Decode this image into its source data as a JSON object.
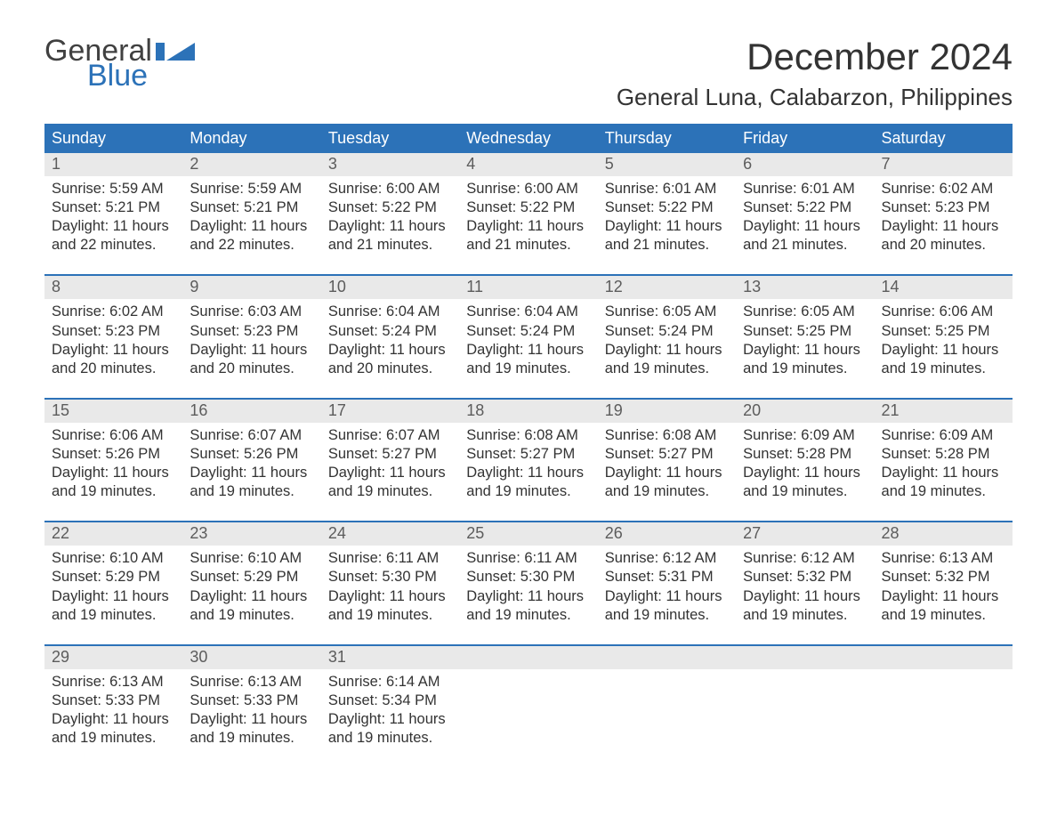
{
  "logo": {
    "line1": "General",
    "line2": "Blue"
  },
  "title": {
    "month_year": "December 2024",
    "location": "General Luna, Calabarzon, Philippines"
  },
  "colors": {
    "header_bg": "#2c72b8",
    "header_text": "#ffffff",
    "daynum_bg": "#e9e9e9",
    "daynum_text": "#5c5c5c",
    "body_text": "#333333",
    "week_border": "#2c72b8",
    "logo_blue": "#2c72b8",
    "logo_gray": "#404040",
    "background": "#ffffff"
  },
  "typography": {
    "month_fontsize": 42,
    "location_fontsize": 26,
    "dayheader_fontsize": 18,
    "daynum_fontsize": 18,
    "cell_fontsize": 16.5,
    "logo_fontsize": 34
  },
  "day_names": [
    "Sunday",
    "Monday",
    "Tuesday",
    "Wednesday",
    "Thursday",
    "Friday",
    "Saturday"
  ],
  "weeks": [
    {
      "days": [
        {
          "num": "1",
          "sunrise": "Sunrise: 5:59 AM",
          "sunset": "Sunset: 5:21 PM",
          "dl1": "Daylight: 11 hours",
          "dl2": "and 22 minutes."
        },
        {
          "num": "2",
          "sunrise": "Sunrise: 5:59 AM",
          "sunset": "Sunset: 5:21 PM",
          "dl1": "Daylight: 11 hours",
          "dl2": "and 22 minutes."
        },
        {
          "num": "3",
          "sunrise": "Sunrise: 6:00 AM",
          "sunset": "Sunset: 5:22 PM",
          "dl1": "Daylight: 11 hours",
          "dl2": "and 21 minutes."
        },
        {
          "num": "4",
          "sunrise": "Sunrise: 6:00 AM",
          "sunset": "Sunset: 5:22 PM",
          "dl1": "Daylight: 11 hours",
          "dl2": "and 21 minutes."
        },
        {
          "num": "5",
          "sunrise": "Sunrise: 6:01 AM",
          "sunset": "Sunset: 5:22 PM",
          "dl1": "Daylight: 11 hours",
          "dl2": "and 21 minutes."
        },
        {
          "num": "6",
          "sunrise": "Sunrise: 6:01 AM",
          "sunset": "Sunset: 5:22 PM",
          "dl1": "Daylight: 11 hours",
          "dl2": "and 21 minutes."
        },
        {
          "num": "7",
          "sunrise": "Sunrise: 6:02 AM",
          "sunset": "Sunset: 5:23 PM",
          "dl1": "Daylight: 11 hours",
          "dl2": "and 20 minutes."
        }
      ]
    },
    {
      "days": [
        {
          "num": "8",
          "sunrise": "Sunrise: 6:02 AM",
          "sunset": "Sunset: 5:23 PM",
          "dl1": "Daylight: 11 hours",
          "dl2": "and 20 minutes."
        },
        {
          "num": "9",
          "sunrise": "Sunrise: 6:03 AM",
          "sunset": "Sunset: 5:23 PM",
          "dl1": "Daylight: 11 hours",
          "dl2": "and 20 minutes."
        },
        {
          "num": "10",
          "sunrise": "Sunrise: 6:04 AM",
          "sunset": "Sunset: 5:24 PM",
          "dl1": "Daylight: 11 hours",
          "dl2": "and 20 minutes."
        },
        {
          "num": "11",
          "sunrise": "Sunrise: 6:04 AM",
          "sunset": "Sunset: 5:24 PM",
          "dl1": "Daylight: 11 hours",
          "dl2": "and 19 minutes."
        },
        {
          "num": "12",
          "sunrise": "Sunrise: 6:05 AM",
          "sunset": "Sunset: 5:24 PM",
          "dl1": "Daylight: 11 hours",
          "dl2": "and 19 minutes."
        },
        {
          "num": "13",
          "sunrise": "Sunrise: 6:05 AM",
          "sunset": "Sunset: 5:25 PM",
          "dl1": "Daylight: 11 hours",
          "dl2": "and 19 minutes."
        },
        {
          "num": "14",
          "sunrise": "Sunrise: 6:06 AM",
          "sunset": "Sunset: 5:25 PM",
          "dl1": "Daylight: 11 hours",
          "dl2": "and 19 minutes."
        }
      ]
    },
    {
      "days": [
        {
          "num": "15",
          "sunrise": "Sunrise: 6:06 AM",
          "sunset": "Sunset: 5:26 PM",
          "dl1": "Daylight: 11 hours",
          "dl2": "and 19 minutes."
        },
        {
          "num": "16",
          "sunrise": "Sunrise: 6:07 AM",
          "sunset": "Sunset: 5:26 PM",
          "dl1": "Daylight: 11 hours",
          "dl2": "and 19 minutes."
        },
        {
          "num": "17",
          "sunrise": "Sunrise: 6:07 AM",
          "sunset": "Sunset: 5:27 PM",
          "dl1": "Daylight: 11 hours",
          "dl2": "and 19 minutes."
        },
        {
          "num": "18",
          "sunrise": "Sunrise: 6:08 AM",
          "sunset": "Sunset: 5:27 PM",
          "dl1": "Daylight: 11 hours",
          "dl2": "and 19 minutes."
        },
        {
          "num": "19",
          "sunrise": "Sunrise: 6:08 AM",
          "sunset": "Sunset: 5:27 PM",
          "dl1": "Daylight: 11 hours",
          "dl2": "and 19 minutes."
        },
        {
          "num": "20",
          "sunrise": "Sunrise: 6:09 AM",
          "sunset": "Sunset: 5:28 PM",
          "dl1": "Daylight: 11 hours",
          "dl2": "and 19 minutes."
        },
        {
          "num": "21",
          "sunrise": "Sunrise: 6:09 AM",
          "sunset": "Sunset: 5:28 PM",
          "dl1": "Daylight: 11 hours",
          "dl2": "and 19 minutes."
        }
      ]
    },
    {
      "days": [
        {
          "num": "22",
          "sunrise": "Sunrise: 6:10 AM",
          "sunset": "Sunset: 5:29 PM",
          "dl1": "Daylight: 11 hours",
          "dl2": "and 19 minutes."
        },
        {
          "num": "23",
          "sunrise": "Sunrise: 6:10 AM",
          "sunset": "Sunset: 5:29 PM",
          "dl1": "Daylight: 11 hours",
          "dl2": "and 19 minutes."
        },
        {
          "num": "24",
          "sunrise": "Sunrise: 6:11 AM",
          "sunset": "Sunset: 5:30 PM",
          "dl1": "Daylight: 11 hours",
          "dl2": "and 19 minutes."
        },
        {
          "num": "25",
          "sunrise": "Sunrise: 6:11 AM",
          "sunset": "Sunset: 5:30 PM",
          "dl1": "Daylight: 11 hours",
          "dl2": "and 19 minutes."
        },
        {
          "num": "26",
          "sunrise": "Sunrise: 6:12 AM",
          "sunset": "Sunset: 5:31 PM",
          "dl1": "Daylight: 11 hours",
          "dl2": "and 19 minutes."
        },
        {
          "num": "27",
          "sunrise": "Sunrise: 6:12 AM",
          "sunset": "Sunset: 5:32 PM",
          "dl1": "Daylight: 11 hours",
          "dl2": "and 19 minutes."
        },
        {
          "num": "28",
          "sunrise": "Sunrise: 6:13 AM",
          "sunset": "Sunset: 5:32 PM",
          "dl1": "Daylight: 11 hours",
          "dl2": "and 19 minutes."
        }
      ]
    },
    {
      "days": [
        {
          "num": "29",
          "sunrise": "Sunrise: 6:13 AM",
          "sunset": "Sunset: 5:33 PM",
          "dl1": "Daylight: 11 hours",
          "dl2": "and 19 minutes."
        },
        {
          "num": "30",
          "sunrise": "Sunrise: 6:13 AM",
          "sunset": "Sunset: 5:33 PM",
          "dl1": "Daylight: 11 hours",
          "dl2": "and 19 minutes."
        },
        {
          "num": "31",
          "sunrise": "Sunrise: 6:14 AM",
          "sunset": "Sunset: 5:34 PM",
          "dl1": "Daylight: 11 hours",
          "dl2": "and 19 minutes."
        },
        {
          "num": "",
          "sunrise": "",
          "sunset": "",
          "dl1": "",
          "dl2": ""
        },
        {
          "num": "",
          "sunrise": "",
          "sunset": "",
          "dl1": "",
          "dl2": ""
        },
        {
          "num": "",
          "sunrise": "",
          "sunset": "",
          "dl1": "",
          "dl2": ""
        },
        {
          "num": "",
          "sunrise": "",
          "sunset": "",
          "dl1": "",
          "dl2": ""
        }
      ]
    }
  ]
}
